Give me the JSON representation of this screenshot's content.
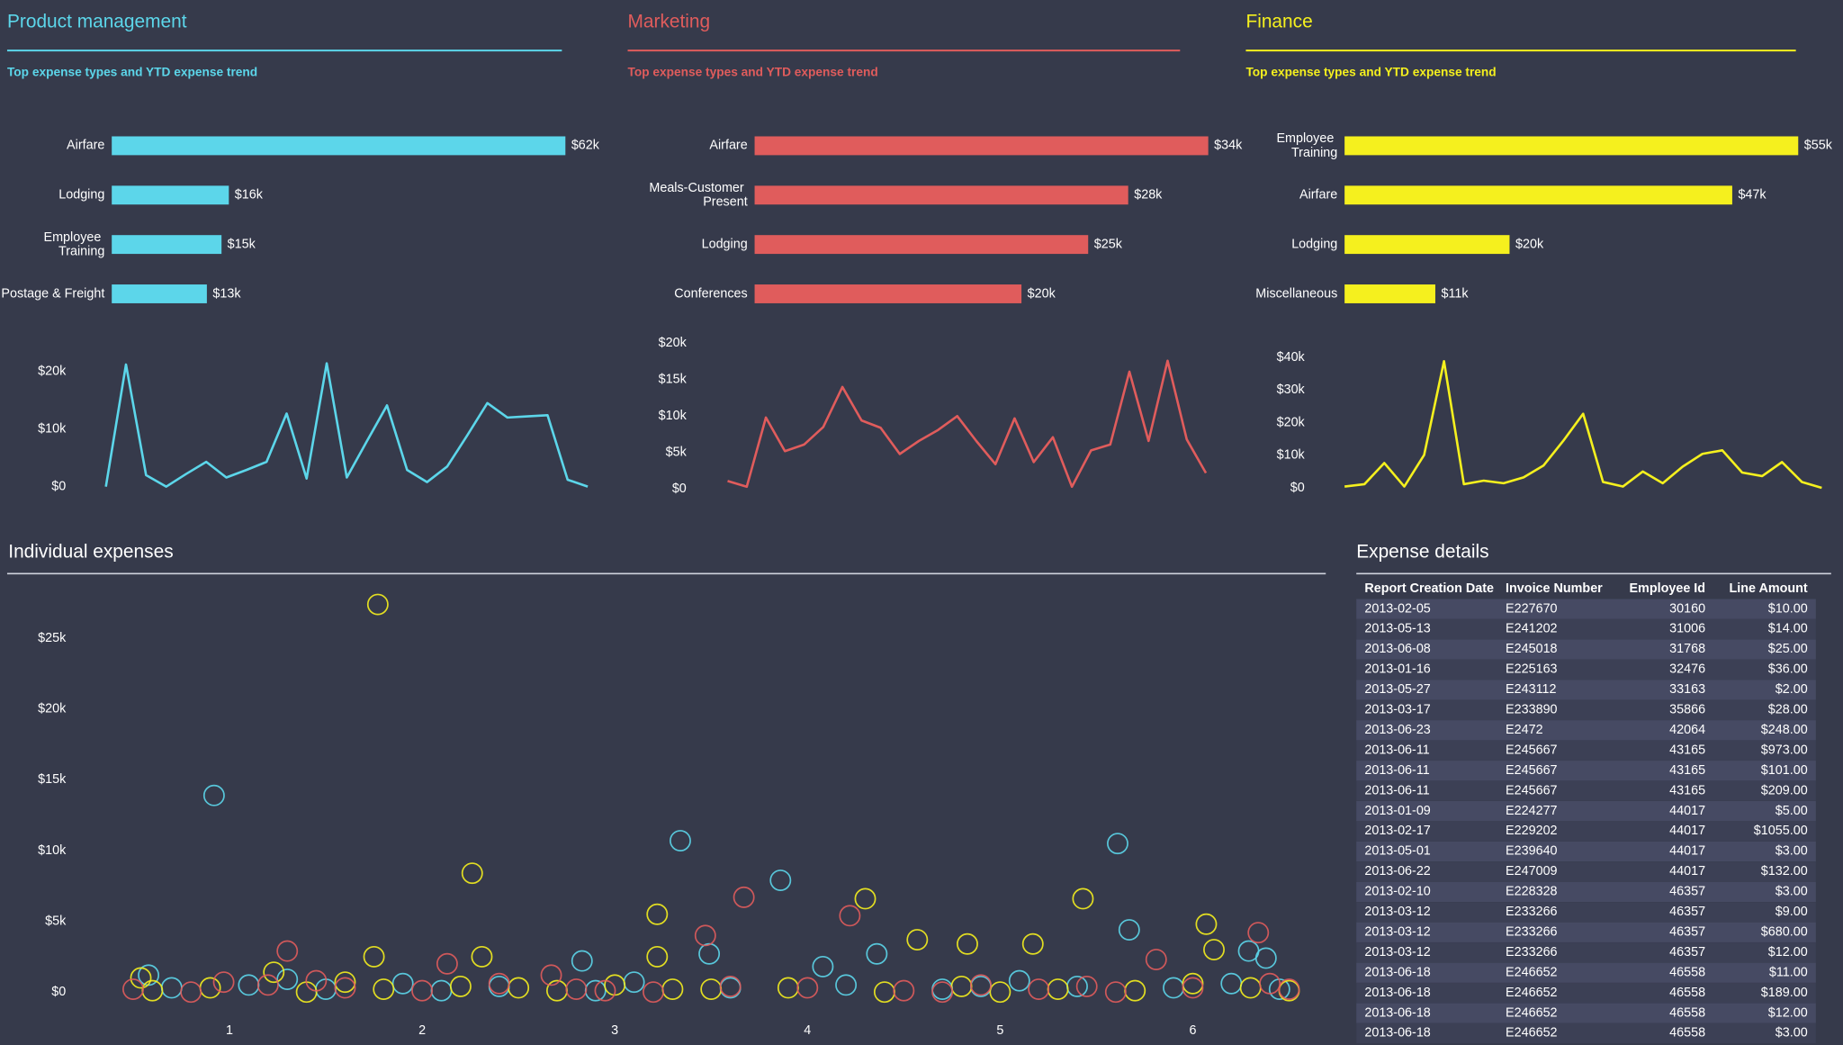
{
  "chart_data": [
    {
      "type": "bar",
      "title": "Product management",
      "subtitle": "Top expense types and YTD expense trend",
      "color": "#5cd6ea",
      "categories": [
        "Airfare",
        "Lodging",
        "Employee Training",
        "Postage & Freight"
      ],
      "values": [
        62000,
        16000,
        15000,
        13000
      ],
      "value_labels": [
        "$62k",
        "$16k",
        "$15k",
        "$13k"
      ]
    },
    {
      "type": "line",
      "color": "#5cd6ea",
      "ylim": [
        0,
        22000
      ],
      "yticks": [
        {
          "value": 0,
          "label": "$0"
        },
        {
          "value": 10000,
          "label": "$10k"
        },
        {
          "value": 20000,
          "label": "$20k"
        }
      ],
      "values": [
        0,
        21200,
        2000,
        0,
        2200,
        4300,
        1600,
        2900,
        4300,
        12700,
        1400,
        21400,
        1600,
        7900,
        14100,
        2900,
        800,
        3500,
        8900,
        14500,
        12000,
        12200,
        12400,
        1200,
        0
      ]
    },
    {
      "type": "bar",
      "title": "Marketing",
      "subtitle": "Top expense types and YTD expense trend",
      "color": "#e05c5c",
      "categories": [
        "Airfare",
        "Meals-Customer Present",
        "Lodging",
        "Conferences"
      ],
      "values": [
        34000,
        28000,
        25000,
        20000
      ],
      "value_labels": [
        "$34k",
        "$28k",
        "$25k",
        "$20k"
      ]
    },
    {
      "type": "line",
      "color": "#e05c5c",
      "ylim": [
        0,
        20000
      ],
      "yticks": [
        {
          "value": 0,
          "label": "$0"
        },
        {
          "value": 5000,
          "label": "$5k"
        },
        {
          "value": 10000,
          "label": "$10k"
        },
        {
          "value": 15000,
          "label": "$15k"
        },
        {
          "value": 20000,
          "label": "$20k"
        }
      ],
      "values": [
        1100,
        300,
        9800,
        5200,
        6100,
        8500,
        14000,
        9400,
        8400,
        4800,
        6600,
        8100,
        10000,
        6600,
        3400,
        9700,
        3700,
        7100,
        300,
        5300,
        6100,
        16100,
        6600,
        17600,
        6800,
        2200
      ]
    },
    {
      "type": "bar",
      "title": "Finance",
      "subtitle": "Top expense types and YTD expense trend",
      "color": "#f5f01e",
      "categories": [
        "Employee Training",
        "Airfare",
        "Lodging",
        "Miscellaneous"
      ],
      "values": [
        55000,
        47000,
        20000,
        11000
      ],
      "value_labels": [
        "$55k",
        "$47k",
        "$20k",
        "$11k"
      ]
    },
    {
      "type": "line",
      "color": "#f5f01e",
      "ylim": [
        0,
        40000
      ],
      "yticks": [
        {
          "value": 0,
          "label": "$0"
        },
        {
          "value": 10000,
          "label": "$10k"
        },
        {
          "value": 20000,
          "label": "$20k"
        },
        {
          "value": 30000,
          "label": "$30k"
        },
        {
          "value": 40000,
          "label": "$40k"
        }
      ],
      "values": [
        400,
        1100,
        7600,
        400,
        10100,
        38800,
        1100,
        2200,
        1400,
        3200,
        6800,
        14400,
        22700,
        1800,
        400,
        5000,
        1400,
        6500,
        10400,
        11500,
        4700,
        3600,
        7900,
        1800,
        0
      ]
    },
    {
      "type": "scatter",
      "title": "Individual expenses",
      "xlim": [
        0.45,
        6.55
      ],
      "xticks": [
        1,
        2,
        3,
        4,
        5,
        6
      ],
      "ylim": [
        -1000,
        28000
      ],
      "yticks": [
        {
          "value": 0,
          "label": "$0"
        },
        {
          "value": 5000,
          "label": "$5k"
        },
        {
          "value": 10000,
          "label": "$10k"
        },
        {
          "value": 15000,
          "label": "$15k"
        },
        {
          "value": 20000,
          "label": "$20k"
        },
        {
          "value": 25000,
          "label": "$25k"
        }
      ],
      "series": [
        {
          "color": "#5cd6ea",
          "x": [
            0.92,
            3.34,
            3.86,
            5.61,
            5.67,
            6.38,
            6.29,
            2.83,
            4.08,
            3.49,
            4.36,
            0.58,
            0.7,
            1.1,
            1.5,
            1.9,
            2.4,
            2.9,
            3.1,
            3.6,
            4.2,
            4.7,
            5.1,
            5.4,
            5.9,
            6.2,
            6.45,
            1.3,
            2.1,
            4.9
          ],
          "values": [
            13900,
            10700,
            7900,
            10500,
            4400,
            2400,
            2900,
            2200,
            1800,
            2700,
            2700,
            1200,
            300,
            500,
            200,
            600,
            400,
            100,
            700,
            300,
            500,
            200,
            800,
            400,
            300,
            600,
            200,
            900,
            100,
            400
          ]
        },
        {
          "color": "#f5f01e",
          "x": [
            1.77,
            2.26,
            3.22,
            4.3,
            5.43,
            6.07,
            1.75,
            2.31,
            3.22,
            4.57,
            4.83,
            5.17,
            6.11,
            0.54,
            1.23,
            0.6,
            0.9,
            1.4,
            1.8,
            2.2,
            2.7,
            3.0,
            3.5,
            3.9,
            4.4,
            4.8,
            5.3,
            5.7,
            6.0,
            6.3,
            6.5,
            1.6,
            3.3,
            5.0,
            2.5
          ],
          "values": [
            27400,
            8400,
            5500,
            6600,
            6600,
            4800,
            2500,
            2500,
            2500,
            3700,
            3400,
            3400,
            3000,
            1000,
            1400,
            100,
            300,
            0,
            200,
            400,
            100,
            500,
            200,
            300,
            0,
            400,
            200,
            100,
            600,
            300,
            100,
            700,
            200,
            0,
            300
          ]
        },
        {
          "color": "#e05c5c",
          "x": [
            3.67,
            4.22,
            3.47,
            1.3,
            5.81,
            6.34,
            2.13,
            2.67,
            0.97,
            0.5,
            0.8,
            1.2,
            1.6,
            2.0,
            2.4,
            2.8,
            3.2,
            3.6,
            4.0,
            4.5,
            4.9,
            5.2,
            5.6,
            6.0,
            6.4,
            1.45,
            2.95,
            4.7,
            5.45,
            6.5
          ],
          "values": [
            6700,
            5400,
            4000,
            2900,
            2300,
            4200,
            2000,
            1200,
            700,
            200,
            0,
            500,
            300,
            100,
            600,
            200,
            0,
            400,
            300,
            100,
            500,
            200,
            0,
            300,
            600,
            800,
            100,
            0,
            400,
            200
          ]
        }
      ]
    }
  ],
  "table": {
    "title": "Expense details",
    "columns": [
      "Report Creation Date",
      "Invoice Number",
      "Employee Id",
      "Line Amount"
    ],
    "rows": [
      [
        "2013-02-05",
        "E227670",
        "30160",
        "$10.00"
      ],
      [
        "2013-05-13",
        "E241202",
        "31006",
        "$14.00"
      ],
      [
        "2013-06-08",
        "E245018",
        "31768",
        "$25.00"
      ],
      [
        "2013-01-16",
        "E225163",
        "32476",
        "$36.00"
      ],
      [
        "2013-05-27",
        "E243112",
        "33163",
        "$2.00"
      ],
      [
        "2013-03-17",
        "E233890",
        "35866",
        "$28.00"
      ],
      [
        "2013-06-23",
        "E2472",
        "42064",
        "$248.00"
      ],
      [
        "2013-06-11",
        "E245667",
        "43165",
        "$973.00"
      ],
      [
        "2013-06-11",
        "E245667",
        "43165",
        "$101.00"
      ],
      [
        "2013-06-11",
        "E245667",
        "43165",
        "$209.00"
      ],
      [
        "2013-01-09",
        "E224277",
        "44017",
        "$5.00"
      ],
      [
        "2013-02-17",
        "E229202",
        "44017",
        "$1055.00"
      ],
      [
        "2013-05-01",
        "E239640",
        "44017",
        "$3.00"
      ],
      [
        "2013-06-22",
        "E247009",
        "44017",
        "$132.00"
      ],
      [
        "2013-02-10",
        "E228328",
        "46357",
        "$3.00"
      ],
      [
        "2013-03-12",
        "E233266",
        "46357",
        "$9.00"
      ],
      [
        "2013-03-12",
        "E233266",
        "46357",
        "$680.00"
      ],
      [
        "2013-03-12",
        "E233266",
        "46357",
        "$12.00"
      ],
      [
        "2013-06-18",
        "E246652",
        "46558",
        "$11.00"
      ],
      [
        "2013-06-18",
        "E246652",
        "46558",
        "$189.00"
      ],
      [
        "2013-06-18",
        "E246652",
        "46558",
        "$12.00"
      ],
      [
        "2013-06-18",
        "E246652",
        "46558",
        "$3.00"
      ]
    ]
  }
}
